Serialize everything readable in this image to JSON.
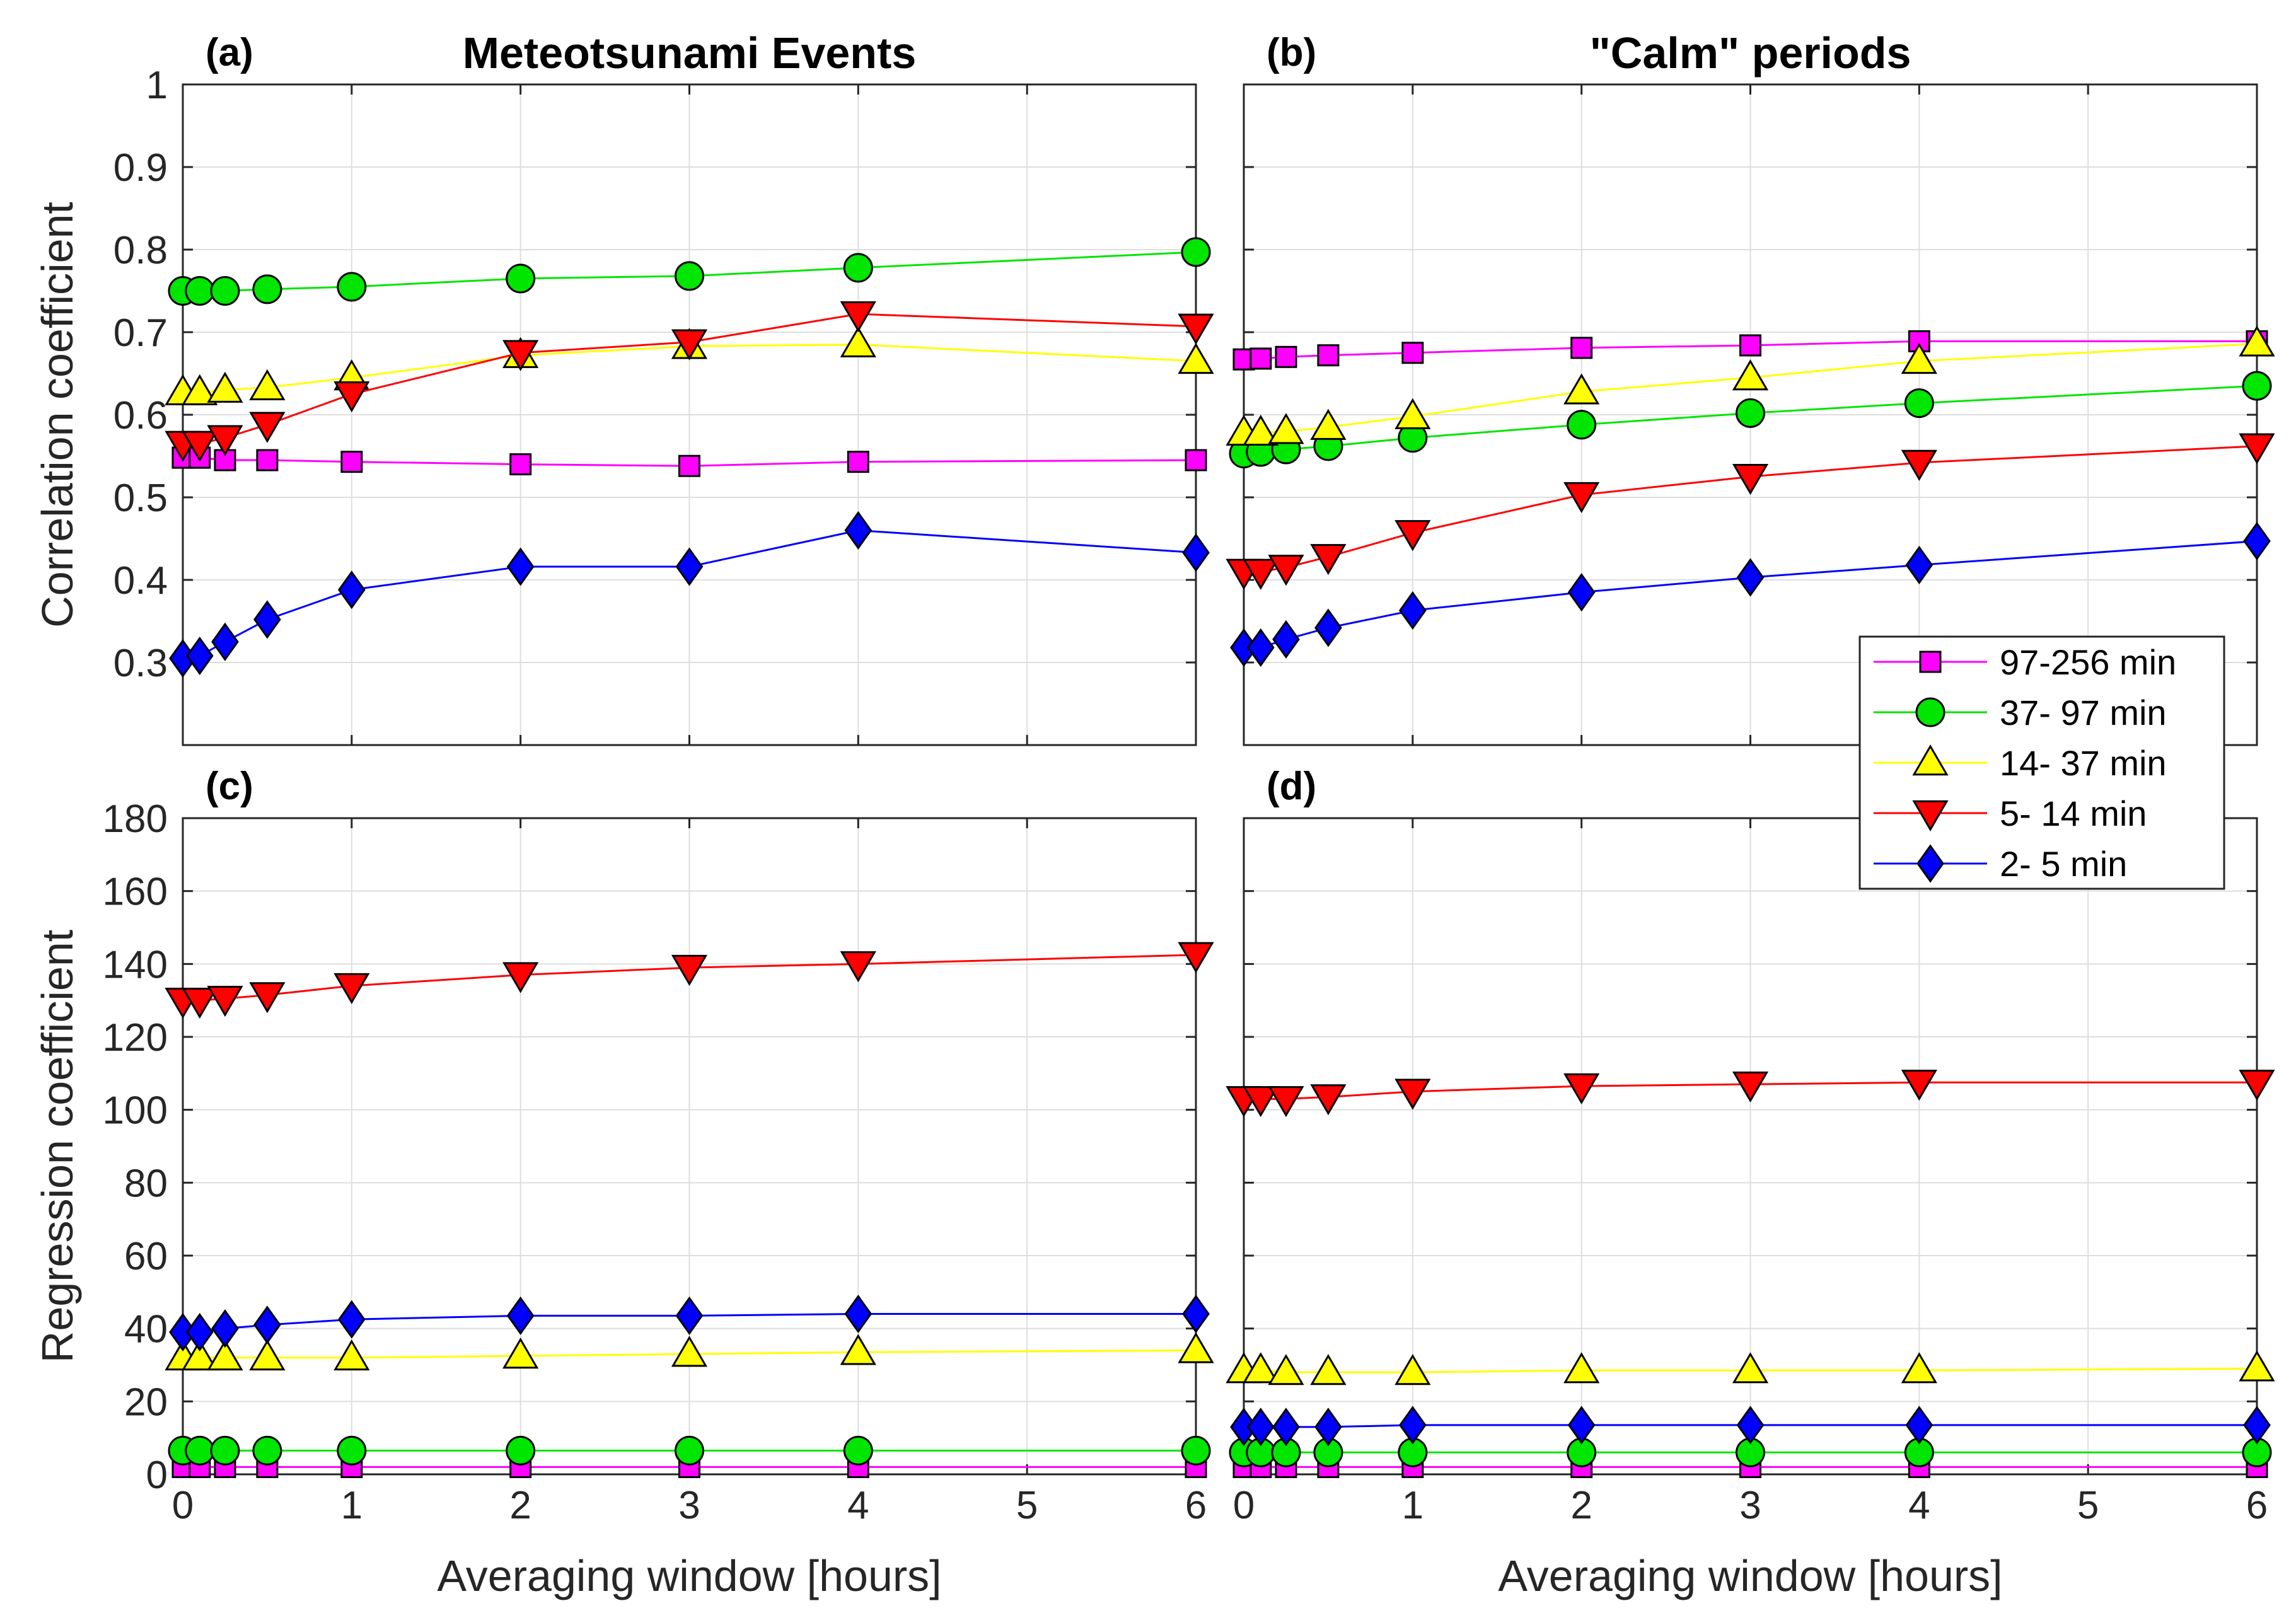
{
  "chart_data": [
    {
      "id": "a",
      "type": "line",
      "panel_label": "(a)",
      "title": "Meteotsunami Events",
      "xlabel": "",
      "ylabel": "Correlation coefficient",
      "xlim": [
        0,
        6
      ],
      "ylim": [
        0.2,
        1.0
      ],
      "xticks": [
        0,
        1,
        2,
        3,
        4,
        5,
        6
      ],
      "yticks": [
        0.3,
        0.4,
        0.5,
        0.6,
        0.7,
        0.8,
        0.9,
        1
      ],
      "x": [
        0,
        0.1,
        0.25,
        0.5,
        1,
        2,
        3,
        4,
        6
      ],
      "grid": true,
      "series": [
        {
          "key": "s97",
          "values": [
            0.548,
            0.548,
            0.545,
            0.545,
            0.543,
            0.54,
            0.538,
            0.543,
            0.545
          ]
        },
        {
          "key": "s37",
          "values": [
            0.75,
            0.75,
            0.75,
            0.752,
            0.755,
            0.765,
            0.768,
            0.778,
            0.797
          ]
        },
        {
          "key": "s14",
          "values": [
            0.627,
            0.627,
            0.63,
            0.633,
            0.645,
            0.672,
            0.683,
            0.685,
            0.665
          ]
        },
        {
          "key": "s5",
          "values": [
            0.565,
            0.565,
            0.572,
            0.588,
            0.625,
            0.675,
            0.688,
            0.722,
            0.707
          ]
        },
        {
          "key": "s2",
          "values": [
            0.305,
            0.308,
            0.325,
            0.352,
            0.388,
            0.416,
            0.416,
            0.46,
            0.433
          ]
        }
      ]
    },
    {
      "id": "b",
      "type": "line",
      "panel_label": "(b)",
      "title": "\"Calm\" periods",
      "xlabel": "",
      "ylabel": "",
      "xlim": [
        0,
        6
      ],
      "ylim": [
        0.2,
        1.0
      ],
      "xticks": [
        0,
        1,
        2,
        3,
        4,
        5,
        6
      ],
      "yticks": [
        0.3,
        0.4,
        0.5,
        0.6,
        0.7,
        0.8,
        0.9,
        1
      ],
      "x": [
        0,
        0.1,
        0.25,
        0.5,
        1,
        2,
        3,
        4,
        6
      ],
      "grid": true,
      "series": [
        {
          "key": "s97",
          "values": [
            0.667,
            0.668,
            0.67,
            0.672,
            0.675,
            0.681,
            0.684,
            0.689,
            0.689
          ]
        },
        {
          "key": "s37",
          "values": [
            0.553,
            0.555,
            0.558,
            0.562,
            0.572,
            0.588,
            0.602,
            0.614,
            0.635
          ]
        },
        {
          "key": "s14",
          "values": [
            0.578,
            0.578,
            0.58,
            0.585,
            0.598,
            0.628,
            0.645,
            0.665,
            0.686
          ]
        },
        {
          "key": "s5",
          "values": [
            0.41,
            0.41,
            0.415,
            0.428,
            0.457,
            0.503,
            0.525,
            0.542,
            0.562
          ]
        },
        {
          "key": "s2",
          "values": [
            0.318,
            0.318,
            0.328,
            0.342,
            0.363,
            0.385,
            0.403,
            0.418,
            0.447
          ]
        }
      ]
    },
    {
      "id": "c",
      "type": "line",
      "panel_label": "(c)",
      "title": "",
      "xlabel": "Averaging window [hours]",
      "ylabel": "Regression coefficient",
      "xlim": [
        0,
        6
      ],
      "ylim": [
        0,
        180
      ],
      "xticks": [
        0,
        1,
        2,
        3,
        4,
        5,
        6
      ],
      "yticks": [
        0,
        20,
        40,
        60,
        80,
        100,
        120,
        140,
        160,
        180
      ],
      "x": [
        0,
        0.1,
        0.25,
        0.5,
        1,
        2,
        3,
        4,
        6
      ],
      "grid": true,
      "series": [
        {
          "key": "s97",
          "values": [
            2,
            2,
            2,
            2,
            2,
            2,
            2,
            2,
            2
          ]
        },
        {
          "key": "s37",
          "values": [
            6.5,
            6.5,
            6.5,
            6.5,
            6.5,
            6.5,
            6.5,
            6.5,
            6.5
          ]
        },
        {
          "key": "s14",
          "values": [
            32,
            32,
            32,
            32,
            32,
            32.5,
            33,
            33.5,
            34
          ]
        },
        {
          "key": "s5",
          "values": [
            130,
            130,
            130.5,
            131.5,
            134,
            137,
            139,
            140,
            142.5
          ]
        },
        {
          "key": "s2",
          "values": [
            39,
            39,
            40,
            41,
            42.5,
            43.5,
            43.5,
            44,
            44
          ]
        }
      ]
    },
    {
      "id": "d",
      "type": "line",
      "panel_label": "(d)",
      "title": "",
      "xlabel": "Averaging window [hours]",
      "ylabel": "",
      "xlim": [
        0,
        6
      ],
      "ylim": [
        0,
        180
      ],
      "xticks": [
        0,
        1,
        2,
        3,
        4,
        5,
        6
      ],
      "yticks": [
        0,
        20,
        40,
        60,
        80,
        100,
        120,
        140,
        160,
        180
      ],
      "x": [
        0,
        0.1,
        0.25,
        0.5,
        1,
        2,
        3,
        4,
        6
      ],
      "grid": true,
      "series": [
        {
          "key": "s97",
          "values": [
            2,
            2,
            2,
            2,
            2,
            2,
            2,
            2,
            2
          ]
        },
        {
          "key": "s37",
          "values": [
            6,
            6,
            6,
            6,
            6,
            6,
            6,
            6,
            6
          ]
        },
        {
          "key": "s14",
          "values": [
            28.5,
            28.5,
            28,
            28,
            28,
            28.5,
            28.5,
            28.5,
            29
          ]
        },
        {
          "key": "s5",
          "values": [
            103,
            103,
            103,
            103.5,
            105,
            106.5,
            107,
            107.5,
            107.5
          ]
        },
        {
          "key": "s2",
          "values": [
            13,
            13,
            13,
            13,
            13.5,
            13.5,
            13.5,
            13.5,
            13.5
          ]
        }
      ]
    }
  ],
  "legend": {
    "placement": "right, across panels (b) and (d)",
    "entries": [
      {
        "key": "s97",
        "label": "97-256 min",
        "color": "#ff00ff",
        "marker": "square"
      },
      {
        "key": "s37",
        "label": "37- 97 min",
        "color": "#00e600",
        "marker": "circle"
      },
      {
        "key": "s14",
        "label": "14- 37 min",
        "color": "#ffff00",
        "marker": "triangle-up"
      },
      {
        "key": "s5",
        "label": "5- 14 min",
        "color": "#ff0000",
        "marker": "triangle-down"
      },
      {
        "key": "s2",
        "label": "2-  5 min",
        "color": "#0000ff",
        "marker": "diamond"
      }
    ]
  }
}
